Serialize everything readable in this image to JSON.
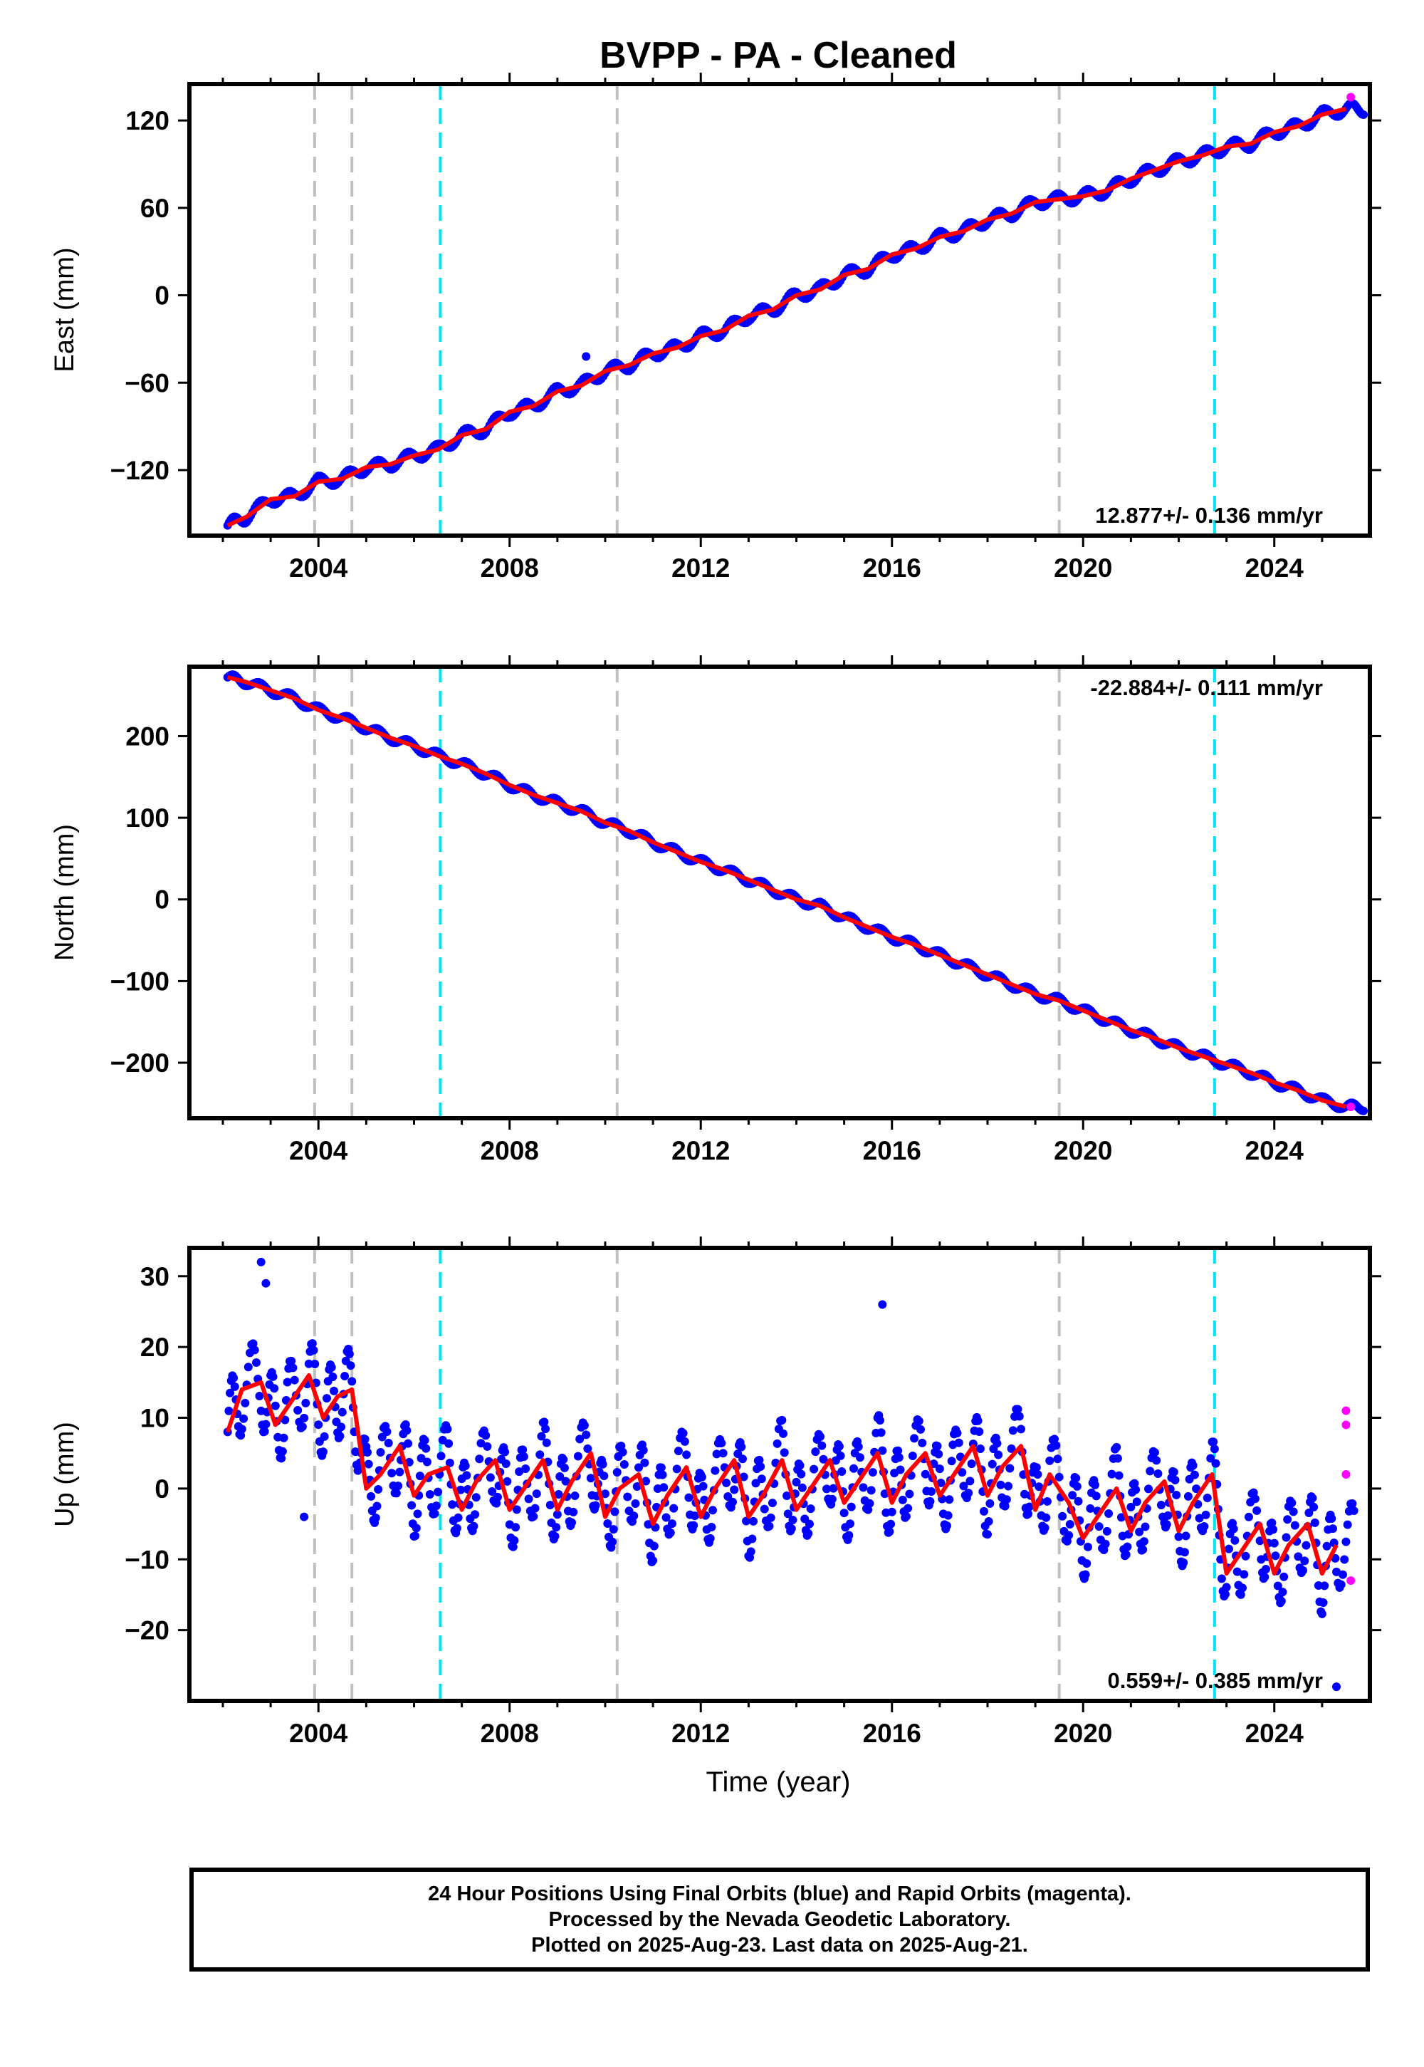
{
  "chart_data": {
    "title": "BVPP  - PA - Cleaned",
    "xlabel": "Time (year)",
    "xlim": [
      2001.3,
      2026.0
    ],
    "xticks": [
      2004,
      2008,
      2012,
      2016,
      2020,
      2024
    ],
    "xtick_labels": [
      "2004",
      "2008",
      "2012",
      "2016",
      "2020",
      "2024"
    ],
    "equipment_change_lines": [
      2003.92,
      2004.7,
      2010.25,
      2019.5
    ],
    "earthquake_lines": [
      2006.55,
      2022.75
    ],
    "colors": {
      "final_orbits": "#0000ff",
      "rapid_orbits": "#ff00ff",
      "model_fit": "#ff0000",
      "equipment_line": "#c0c0c0",
      "earthquake_line": "#00e5ee"
    },
    "panels": [
      {
        "type": "scatter",
        "name": "east",
        "ylabel": "East (mm)",
        "ylim": [
          -165,
          145
        ],
        "yticks": [
          -120,
          -60,
          0,
          60,
          120
        ],
        "ytick_labels": [
          "−120",
          "−60",
          "0",
          "60",
          "120"
        ],
        "rate_label": "12.877+/- 0.136 mm/yr",
        "rate_position": "bottom-right",
        "x": [
          2002.1,
          2002.5,
          2003.0,
          2003.5,
          2004.0,
          2004.5,
          2005.0,
          2005.5,
          2006.0,
          2006.5,
          2007.0,
          2007.5,
          2008.0,
          2008.5,
          2009.0,
          2009.5,
          2010.0,
          2010.5,
          2011.0,
          2011.5,
          2012.0,
          2012.5,
          2013.0,
          2013.5,
          2014.0,
          2014.5,
          2015.0,
          2015.5,
          2016.0,
          2016.5,
          2017.0,
          2017.5,
          2018.0,
          2018.5,
          2019.0,
          2019.5,
          2020.0,
          2020.5,
          2021.0,
          2021.5,
          2022.0,
          2022.5,
          2023.0,
          2023.5,
          2024.0,
          2024.5,
          2025.0,
          2025.5
        ],
        "y": [
          -158,
          -152,
          -140,
          -138,
          -128,
          -126,
          -118,
          -116,
          -110,
          -106,
          -96,
          -92,
          -80,
          -76,
          -66,
          -62,
          -52,
          -48,
          -40,
          -36,
          -28,
          -24,
          -14,
          -10,
          0,
          4,
          14,
          18,
          28,
          32,
          40,
          44,
          52,
          56,
          64,
          66,
          68,
          72,
          80,
          86,
          92,
          96,
          102,
          104,
          112,
          116,
          124,
          128
        ],
        "outliers": {
          "x": [
            2009.6,
            2025.6
          ],
          "y": [
            -42,
            136
          ]
        }
      },
      {
        "type": "scatter",
        "name": "north",
        "ylabel": "North (mm)",
        "ylim": [
          -268,
          285
        ],
        "yticks": [
          -200,
          -100,
          0,
          100,
          200
        ],
        "ytick_labels": [
          "−200",
          "−100",
          "0",
          "100",
          "200"
        ],
        "rate_label": "-22.884+/- 0.111 mm/yr",
        "rate_position": "top-right",
        "x": [
          2002.1,
          2002.5,
          2003.0,
          2003.5,
          2004.0,
          2004.5,
          2005.0,
          2005.5,
          2006.0,
          2006.5,
          2007.0,
          2007.5,
          2008.0,
          2008.5,
          2009.0,
          2009.5,
          2010.0,
          2010.5,
          2011.0,
          2011.5,
          2012.0,
          2012.5,
          2013.0,
          2013.5,
          2014.0,
          2014.5,
          2015.0,
          2015.5,
          2016.0,
          2016.5,
          2017.0,
          2017.5,
          2018.0,
          2018.5,
          2019.0,
          2019.5,
          2020.0,
          2020.5,
          2021.0,
          2021.5,
          2022.0,
          2022.5,
          2023.0,
          2023.5,
          2024.0,
          2024.5,
          2025.0,
          2025.5
        ],
        "y": [
          272,
          266,
          256,
          246,
          232,
          222,
          210,
          198,
          188,
          176,
          166,
          154,
          140,
          128,
          118,
          108,
          94,
          84,
          70,
          58,
          46,
          36,
          24,
          12,
          0,
          -8,
          -22,
          -34,
          -46,
          -56,
          -68,
          -80,
          -92,
          -104,
          -116,
          -124,
          -136,
          -148,
          -160,
          -170,
          -182,
          -192,
          -202,
          -212,
          -224,
          -234,
          -246,
          -254
        ],
        "outliers": {
          "x": [
            2025.6
          ],
          "y": [
            -254
          ]
        }
      },
      {
        "type": "scatter",
        "name": "up",
        "ylabel": "Up (mm)",
        "ylim": [
          -30,
          34
        ],
        "yticks": [
          -20,
          -10,
          0,
          10,
          20,
          30
        ],
        "ytick_labels": [
          "−20",
          "−10",
          "0",
          "10",
          "20",
          "30"
        ],
        "rate_label": "0.559+/- 0.385 mm/yr",
        "rate_position": "bottom-right",
        "x": [
          2002.1,
          2002.4,
          2002.8,
          2003.1,
          2003.4,
          2003.8,
          2004.1,
          2004.4,
          2004.7,
          2005.0,
          2005.3,
          2005.7,
          2006.0,
          2006.3,
          2006.7,
          2007.0,
          2007.3,
          2007.7,
          2008.0,
          2008.3,
          2008.7,
          2009.0,
          2009.3,
          2009.7,
          2010.0,
          2010.3,
          2010.7,
          2011.0,
          2011.3,
          2011.7,
          2012.0,
          2012.3,
          2012.7,
          2013.0,
          2013.3,
          2013.7,
          2014.0,
          2014.3,
          2014.7,
          2015.0,
          2015.3,
          2015.7,
          2016.0,
          2016.3,
          2016.7,
          2017.0,
          2017.3,
          2017.7,
          2018.0,
          2018.3,
          2018.7,
          2019.0,
          2019.3,
          2019.7,
          2020.0,
          2020.3,
          2020.7,
          2021.0,
          2021.3,
          2021.7,
          2022.0,
          2022.3,
          2022.7,
          2023.0,
          2023.3,
          2023.7,
          2024.0,
          2024.3,
          2024.7,
          2025.0,
          2025.3
        ],
        "y": [
          8,
          14,
          15,
          9,
          12,
          16,
          10,
          13,
          14,
          0,
          2,
          6,
          -1,
          2,
          3,
          -3,
          1,
          4,
          -3,
          0,
          4,
          -3,
          1,
          5,
          -4,
          0,
          2,
          -5,
          -1,
          3,
          -4,
          0,
          4,
          -4,
          -1,
          4,
          -3,
          0,
          4,
          -2,
          1,
          5,
          -2,
          2,
          5,
          -1,
          2,
          6,
          -1,
          3,
          6,
          -3,
          2,
          -2,
          -7,
          -4,
          0,
          -6,
          -2,
          1,
          -6,
          -2,
          2,
          -12,
          -9,
          -5,
          -12,
          -8,
          -5,
          -12,
          -8
        ],
        "outliers": {
          "x": [
            2002.8,
            2002.9,
            2003.7,
            2015.8,
            2025.3,
            2025.5,
            2025.5,
            2025.5,
            2025.6
          ],
          "y": [
            32,
            29,
            -4,
            26,
            -28,
            11,
            9,
            2,
            -13
          ]
        }
      }
    ]
  },
  "caption": {
    "line1": "24 Hour Positions Using Final Orbits (blue) and Rapid Orbits (magenta).",
    "line2": "Processed by the Nevada Geodetic Laboratory.",
    "line3": "Plotted on 2025-Aug-23. Last data on 2025-Aug-21."
  }
}
